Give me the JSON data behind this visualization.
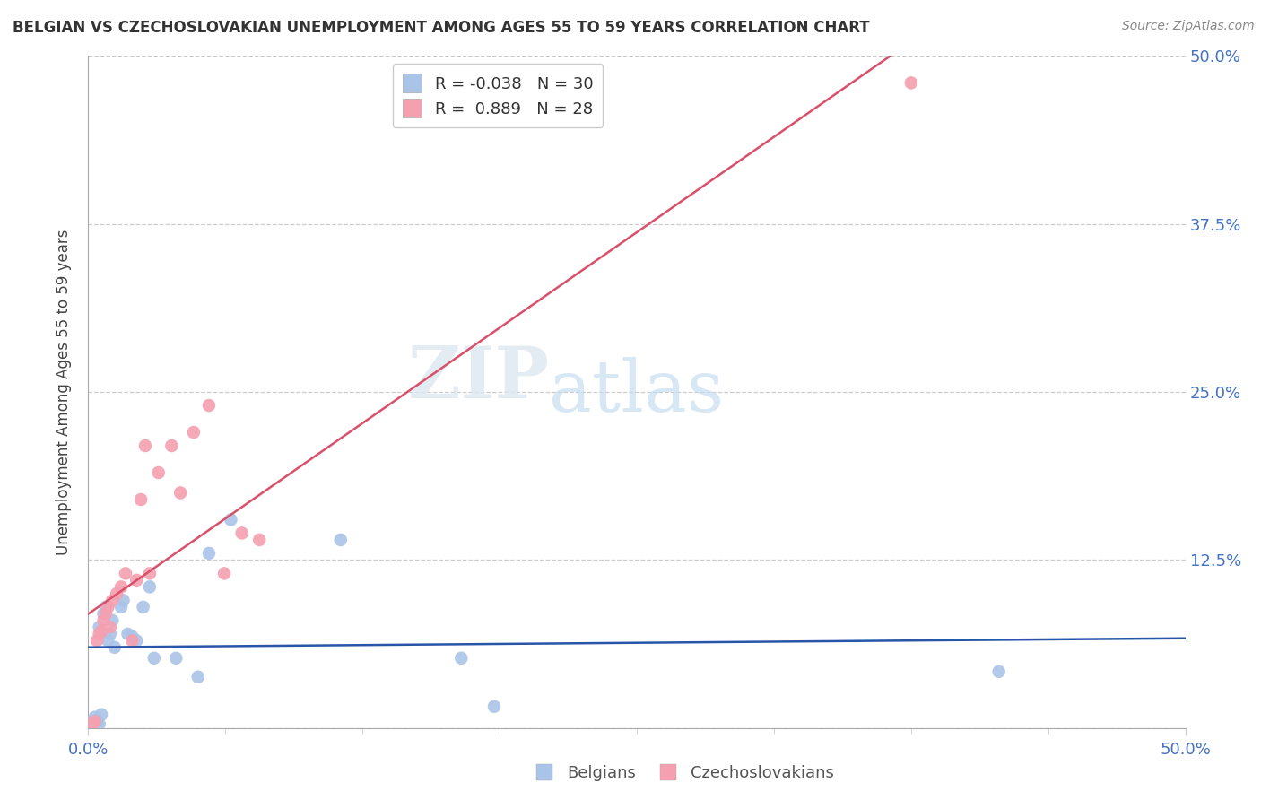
{
  "title": "BELGIAN VS CZECHOSLOVAKIAN UNEMPLOYMENT AMONG AGES 55 TO 59 YEARS CORRELATION CHART",
  "source": "Source: ZipAtlas.com",
  "ylabel": "Unemployment Among Ages 55 to 59 years",
  "xlim": [
    0,
    0.5
  ],
  "ylim": [
    0,
    0.5
  ],
  "yticks_right": [
    0.125,
    0.25,
    0.375,
    0.5
  ],
  "ytick_right_labels": [
    "12.5%",
    "25.0%",
    "37.5%",
    "50.0%"
  ],
  "x_minor_ticks": [
    0.0,
    0.0625,
    0.125,
    0.1875,
    0.25,
    0.3125,
    0.375,
    0.4375,
    0.5
  ],
  "watermark_zip": "ZIP",
  "watermark_atlas": "atlas",
  "belgian_color": "#aac4e8",
  "czechoslovakian_color": "#f4a0b0",
  "belgian_line_color": "#2855a8",
  "czechoslovakian_line_color": "#d9506a",
  "legend_R_belgian": "-0.038",
  "legend_N_belgian": "30",
  "legend_R_czechoslovakian": "0.889",
  "legend_N_czechoslovakian": "28",
  "belgians_x": [
    0.001,
    0.002,
    0.003,
    0.003,
    0.004,
    0.005,
    0.005,
    0.006,
    0.007,
    0.008,
    0.009,
    0.01,
    0.011,
    0.012,
    0.015,
    0.016,
    0.018,
    0.02,
    0.022,
    0.025,
    0.028,
    0.03,
    0.04,
    0.05,
    0.055,
    0.065,
    0.115,
    0.17,
    0.185,
    0.415
  ],
  "belgians_y": [
    0.004,
    0.002,
    0.003,
    0.008,
    0.005,
    0.003,
    0.075,
    0.01,
    0.085,
    0.09,
    0.065,
    0.07,
    0.08,
    0.06,
    0.09,
    0.095,
    0.07,
    0.068,
    0.065,
    0.09,
    0.105,
    0.052,
    0.052,
    0.038,
    0.13,
    0.155,
    0.14,
    0.052,
    0.016,
    0.042
  ],
  "czechoslovakians_x": [
    0.001,
    0.002,
    0.003,
    0.004,
    0.005,
    0.006,
    0.007,
    0.008,
    0.009,
    0.01,
    0.011,
    0.013,
    0.015,
    0.017,
    0.02,
    0.022,
    0.024,
    0.026,
    0.028,
    0.032,
    0.038,
    0.042,
    0.048,
    0.055,
    0.062,
    0.07,
    0.078,
    0.375
  ],
  "czechoslovakians_y": [
    0.002,
    0.003,
    0.005,
    0.065,
    0.07,
    0.072,
    0.08,
    0.085,
    0.09,
    0.075,
    0.095,
    0.1,
    0.105,
    0.115,
    0.065,
    0.11,
    0.17,
    0.21,
    0.115,
    0.19,
    0.21,
    0.175,
    0.22,
    0.24,
    0.115,
    0.145,
    0.14,
    0.48
  ]
}
